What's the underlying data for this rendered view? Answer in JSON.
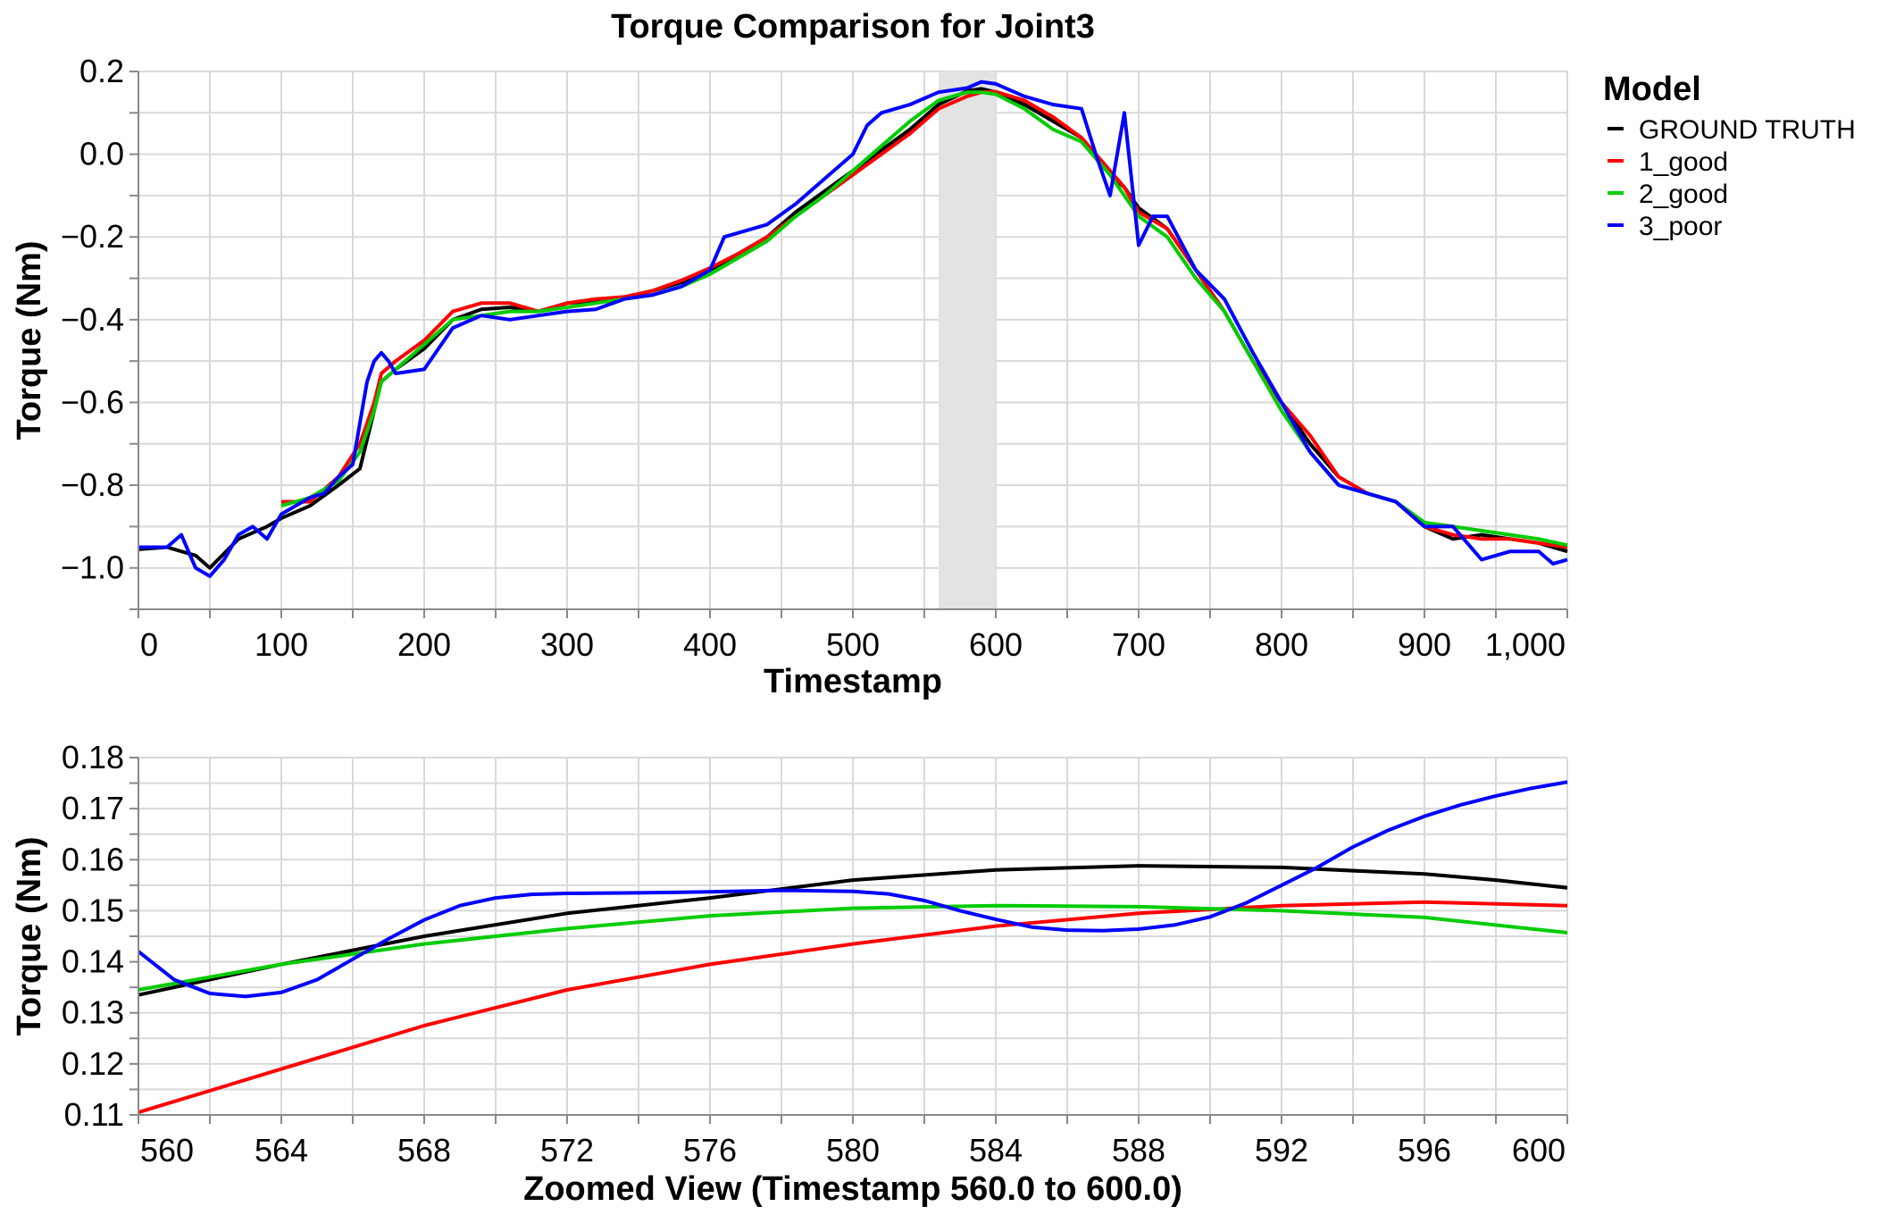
{
  "title": "Torque Comparison for Joint3",
  "legend": {
    "title": "Model",
    "position": "right",
    "entries": [
      {
        "label": "GROUND TRUTH",
        "color": "#000000"
      },
      {
        "label": "1_good",
        "color": "#ff0000"
      },
      {
        "label": "2_good",
        "color": "#00cc00"
      },
      {
        "label": "3_poor",
        "color": "#0000ff"
      }
    ]
  },
  "chart_data": [
    {
      "type": "line",
      "title": "Torque Comparison for Joint3",
      "xlabel": "Timestamp",
      "ylabel": "Torque (Nm)",
      "xlim": [
        0,
        1000
      ],
      "ylim": [
        -1.1,
        0.2
      ],
      "xticks": [
        0,
        100,
        200,
        300,
        400,
        500,
        600,
        700,
        800,
        900,
        1000
      ],
      "xtick_labels": [
        "0",
        "100",
        "200",
        "300",
        "400",
        "500",
        "600",
        "700",
        "800",
        "900",
        "1,000"
      ],
      "yticks": [
        -1.0,
        -0.8,
        -0.6,
        -0.4,
        -0.2,
        0.0,
        0.2
      ],
      "ytick_labels": [
        "−1.0",
        "−0.8",
        "−0.6",
        "−0.4",
        "−0.2",
        "0.0",
        "0.2"
      ],
      "grid": true,
      "highlight_range": [
        560,
        600
      ],
      "series": [
        {
          "name": "GROUND TRUTH",
          "color": "#000000",
          "x": [
            0,
            20,
            40,
            50,
            70,
            90,
            100,
            120,
            140,
            155,
            165,
            170,
            180,
            200,
            220,
            240,
            260,
            280,
            300,
            320,
            340,
            360,
            380,
            400,
            420,
            440,
            460,
            480,
            500,
            520,
            540,
            560,
            580,
            590,
            600,
            620,
            640,
            660,
            680,
            690,
            700,
            720,
            740,
            760,
            780,
            800,
            820,
            840,
            860,
            880,
            900,
            920,
            940,
            960,
            980,
            1000
          ],
          "y": [
            -0.955,
            -0.95,
            -0.97,
            -1.0,
            -0.93,
            -0.9,
            -0.88,
            -0.85,
            -0.8,
            -0.76,
            -0.62,
            -0.55,
            -0.52,
            -0.47,
            -0.4,
            -0.375,
            -0.37,
            -0.38,
            -0.36,
            -0.355,
            -0.345,
            -0.33,
            -0.31,
            -0.28,
            -0.24,
            -0.2,
            -0.14,
            -0.09,
            -0.04,
            0.01,
            0.06,
            0.12,
            0.153,
            0.158,
            0.15,
            0.12,
            0.08,
            0.04,
            -0.05,
            -0.08,
            -0.13,
            -0.18,
            -0.28,
            -0.38,
            -0.5,
            -0.6,
            -0.7,
            -0.78,
            -0.82,
            -0.84,
            -0.9,
            -0.93,
            -0.92,
            -0.93,
            -0.94,
            -0.96
          ]
        },
        {
          "name": "1_good",
          "color": "#ff0000",
          "x": [
            100,
            120,
            140,
            155,
            165,
            170,
            180,
            200,
            220,
            240,
            260,
            280,
            300,
            320,
            340,
            360,
            380,
            400,
            420,
            440,
            460,
            480,
            500,
            520,
            540,
            560,
            580,
            590,
            600,
            620,
            640,
            660,
            680,
            690,
            700,
            720,
            740,
            760,
            780,
            800,
            820,
            840,
            860,
            880,
            900,
            920,
            940,
            960,
            980,
            1000
          ],
          "y": [
            -0.84,
            -0.84,
            -0.78,
            -0.7,
            -0.6,
            -0.53,
            -0.5,
            -0.45,
            -0.38,
            -0.36,
            -0.36,
            -0.38,
            -0.36,
            -0.35,
            -0.345,
            -0.33,
            -0.305,
            -0.275,
            -0.24,
            -0.2,
            -0.15,
            -0.1,
            -0.05,
            0.0,
            0.05,
            0.11,
            0.14,
            0.15,
            0.151,
            0.13,
            0.09,
            0.04,
            -0.04,
            -0.08,
            -0.14,
            -0.18,
            -0.28,
            -0.38,
            -0.5,
            -0.6,
            -0.68,
            -0.78,
            -0.82,
            -0.84,
            -0.9,
            -0.92,
            -0.93,
            -0.93,
            -0.94,
            -0.95
          ]
        },
        {
          "name": "2_good",
          "color": "#00cc00",
          "x": [
            100,
            120,
            140,
            155,
            165,
            170,
            180,
            200,
            220,
            240,
            260,
            280,
            300,
            320,
            340,
            360,
            380,
            400,
            420,
            440,
            460,
            480,
            500,
            520,
            540,
            560,
            580,
            590,
            600,
            620,
            640,
            660,
            680,
            690,
            700,
            720,
            740,
            760,
            780,
            800,
            820,
            840,
            860,
            880,
            900,
            920,
            940,
            960,
            980,
            1000
          ],
          "y": [
            -0.85,
            -0.83,
            -0.79,
            -0.72,
            -0.62,
            -0.55,
            -0.52,
            -0.46,
            -0.4,
            -0.39,
            -0.38,
            -0.38,
            -0.37,
            -0.36,
            -0.35,
            -0.34,
            -0.32,
            -0.29,
            -0.25,
            -0.21,
            -0.15,
            -0.1,
            -0.04,
            0.02,
            0.08,
            0.13,
            0.15,
            0.15,
            0.145,
            0.11,
            0.06,
            0.03,
            -0.05,
            -0.1,
            -0.15,
            -0.2,
            -0.3,
            -0.38,
            -0.5,
            -0.62,
            -0.72,
            -0.8,
            -0.82,
            -0.84,
            -0.89,
            -0.9,
            -0.91,
            -0.92,
            -0.93,
            -0.945
          ]
        },
        {
          "name": "3_poor",
          "color": "#0000ff",
          "x": [
            0,
            20,
            30,
            40,
            50,
            60,
            70,
            80,
            90,
            100,
            110,
            120,
            130,
            140,
            150,
            160,
            165,
            170,
            175,
            180,
            200,
            220,
            240,
            260,
            280,
            300,
            320,
            340,
            360,
            380,
            400,
            410,
            420,
            440,
            460,
            480,
            500,
            510,
            520,
            540,
            560,
            580,
            590,
            600,
            620,
            640,
            660,
            670,
            680,
            690,
            700,
            710,
            720,
            740,
            760,
            780,
            800,
            820,
            840,
            860,
            880,
            900,
            920,
            940,
            960,
            980,
            990,
            1000
          ],
          "y": [
            -0.95,
            -0.95,
            -0.92,
            -1.0,
            -1.02,
            -0.98,
            -0.92,
            -0.9,
            -0.93,
            -0.87,
            -0.85,
            -0.83,
            -0.82,
            -0.78,
            -0.75,
            -0.55,
            -0.5,
            -0.48,
            -0.5,
            -0.53,
            -0.52,
            -0.42,
            -0.39,
            -0.4,
            -0.39,
            -0.38,
            -0.375,
            -0.35,
            -0.34,
            -0.32,
            -0.28,
            -0.2,
            -0.19,
            -0.17,
            -0.12,
            -0.06,
            0.0,
            0.07,
            0.1,
            0.12,
            0.15,
            0.16,
            0.175,
            0.17,
            0.14,
            0.12,
            0.11,
            0.0,
            -0.1,
            0.1,
            -0.22,
            -0.15,
            -0.15,
            -0.28,
            -0.35,
            -0.48,
            -0.6,
            -0.72,
            -0.8,
            -0.82,
            -0.84,
            -0.9,
            -0.9,
            -0.98,
            -0.96,
            -0.96,
            -0.99,
            -0.98
          ]
        }
      ]
    },
    {
      "type": "line",
      "xlabel": "Zoomed View (Timestamp 560.0 to 600.0)",
      "ylabel": "Torque (Nm)",
      "xlim": [
        560,
        600
      ],
      "ylim": [
        0.11,
        0.18
      ],
      "xticks": [
        560,
        564,
        568,
        572,
        576,
        580,
        584,
        588,
        592,
        596,
        600
      ],
      "xtick_labels": [
        "560",
        "564",
        "568",
        "572",
        "576",
        "580",
        "584",
        "588",
        "592",
        "596",
        "600"
      ],
      "yticks": [
        0.11,
        0.12,
        0.13,
        0.14,
        0.15,
        0.16,
        0.17,
        0.18
      ],
      "ytick_labels": [
        "0.11",
        "0.12",
        "0.13",
        "0.14",
        "0.15",
        "0.16",
        "0.17",
        "0.18"
      ],
      "grid": true,
      "series": [
        {
          "name": "GROUND TRUTH",
          "color": "#000000",
          "x": [
            560,
            564,
            568,
            572,
            576,
            580,
            584,
            588,
            592,
            596,
            598,
            600
          ],
          "y": [
            0.1335,
            0.1395,
            0.145,
            0.1495,
            0.1525,
            0.156,
            0.158,
            0.1588,
            0.1585,
            0.1572,
            0.156,
            0.1545
          ]
        },
        {
          "name": "1_good",
          "color": "#ff0000",
          "x": [
            560,
            564,
            568,
            572,
            576,
            580,
            584,
            588,
            592,
            596,
            600
          ],
          "y": [
            0.1105,
            0.119,
            0.1275,
            0.1345,
            0.1395,
            0.1435,
            0.147,
            0.1495,
            0.151,
            0.1517,
            0.151
          ]
        },
        {
          "name": "2_good",
          "color": "#00cc00",
          "x": [
            560,
            564,
            568,
            572,
            576,
            580,
            584,
            588,
            592,
            596,
            600
          ],
          "y": [
            0.1345,
            0.1395,
            0.1435,
            0.1465,
            0.149,
            0.1505,
            0.151,
            0.1508,
            0.15,
            0.1487,
            0.1457
          ]
        },
        {
          "name": "3_poor",
          "color": "#0000ff",
          "x": [
            560,
            561,
            562,
            563,
            564,
            565,
            566,
            567,
            568,
            569,
            570,
            571,
            572,
            574,
            576,
            578,
            580,
            581,
            582,
            583,
            584,
            585,
            586,
            587,
            588,
            589,
            590,
            591,
            592,
            593,
            594,
            595,
            596,
            597,
            598,
            599,
            600
          ],
          "y": [
            0.142,
            0.1365,
            0.1338,
            0.1332,
            0.134,
            0.1365,
            0.1405,
            0.1445,
            0.1482,
            0.151,
            0.1525,
            0.1532,
            0.1534,
            0.1535,
            0.1537,
            0.154,
            0.1538,
            0.1533,
            0.152,
            0.15,
            0.1483,
            0.1468,
            0.1462,
            0.1461,
            0.1464,
            0.1472,
            0.1488,
            0.1515,
            0.155,
            0.1585,
            0.1625,
            0.1658,
            0.1685,
            0.1707,
            0.1725,
            0.174,
            0.1752
          ]
        }
      ]
    }
  ]
}
